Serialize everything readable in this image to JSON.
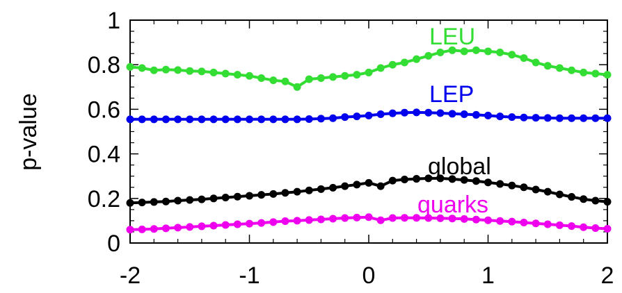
{
  "chart_data": {
    "type": "line",
    "title": "",
    "xlabel": "",
    "ylabel": "p-value",
    "xlim": [
      -2,
      2
    ],
    "ylim": [
      0,
      1
    ],
    "x_ticks": [
      "-2",
      "-1",
      "0",
      "1",
      "2"
    ],
    "y_ticks": [
      "0",
      "0.2",
      "0.4",
      "0.6",
      "0.8",
      "1"
    ],
    "grid": false,
    "legend": "none",
    "series": [
      {
        "name": "LEU",
        "color": "#33dd33",
        "x": [
          -2.0,
          -1.9,
          -1.8,
          -1.7,
          -1.6,
          -1.5,
          -1.4,
          -1.3,
          -1.2,
          -1.1,
          -1.0,
          -0.9,
          -0.8,
          -0.7,
          -0.6,
          -0.5,
          -0.4,
          -0.3,
          -0.2,
          -0.1,
          0.0,
          0.1,
          0.2,
          0.3,
          0.4,
          0.5,
          0.6,
          0.7,
          0.8,
          0.9,
          1.0,
          1.1,
          1.2,
          1.3,
          1.4,
          1.5,
          1.6,
          1.7,
          1.8,
          1.9,
          2.0
        ],
        "values": [
          0.79,
          0.785,
          0.775,
          0.778,
          0.776,
          0.772,
          0.77,
          0.765,
          0.76,
          0.755,
          0.75,
          0.74,
          0.73,
          0.725,
          0.7,
          0.735,
          0.74,
          0.745,
          0.75,
          0.755,
          0.765,
          0.785,
          0.8,
          0.81,
          0.825,
          0.84,
          0.855,
          0.865,
          0.86,
          0.865,
          0.86,
          0.855,
          0.845,
          0.83,
          0.81,
          0.795,
          0.785,
          0.775,
          0.765,
          0.76,
          0.755
        ]
      },
      {
        "name": "LEP",
        "color": "#0000ee",
        "x": [
          -2.0,
          -1.9,
          -1.8,
          -1.7,
          -1.6,
          -1.5,
          -1.4,
          -1.3,
          -1.2,
          -1.1,
          -1.0,
          -0.9,
          -0.8,
          -0.7,
          -0.6,
          -0.5,
          -0.4,
          -0.3,
          -0.2,
          -0.1,
          0.0,
          0.1,
          0.2,
          0.3,
          0.4,
          0.5,
          0.6,
          0.7,
          0.8,
          0.9,
          1.0,
          1.1,
          1.2,
          1.3,
          1.4,
          1.5,
          1.6,
          1.7,
          1.8,
          1.9,
          2.0
        ],
        "values": [
          0.555,
          0.555,
          0.555,
          0.555,
          0.555,
          0.555,
          0.555,
          0.555,
          0.555,
          0.555,
          0.555,
          0.555,
          0.555,
          0.555,
          0.555,
          0.556,
          0.558,
          0.56,
          0.565,
          0.568,
          0.572,
          0.578,
          0.582,
          0.585,
          0.586,
          0.585,
          0.583,
          0.58,
          0.578,
          0.575,
          0.572,
          0.568,
          0.565,
          0.563,
          0.562,
          0.561,
          0.56,
          0.56,
          0.56,
          0.56,
          0.56
        ]
      },
      {
        "name": "global",
        "color": "#000000",
        "x": [
          -2.0,
          -1.9,
          -1.8,
          -1.7,
          -1.6,
          -1.5,
          -1.4,
          -1.3,
          -1.2,
          -1.1,
          -1.0,
          -0.9,
          -0.8,
          -0.7,
          -0.6,
          -0.5,
          -0.4,
          -0.3,
          -0.2,
          -0.1,
          0.0,
          0.1,
          0.2,
          0.3,
          0.4,
          0.5,
          0.6,
          0.7,
          0.8,
          0.9,
          1.0,
          1.1,
          1.2,
          1.3,
          1.4,
          1.5,
          1.6,
          1.7,
          1.8,
          1.9,
          2.0
        ],
        "values": [
          0.18,
          0.182,
          0.184,
          0.186,
          0.19,
          0.193,
          0.196,
          0.2,
          0.204,
          0.208,
          0.212,
          0.216,
          0.22,
          0.225,
          0.23,
          0.236,
          0.242,
          0.248,
          0.255,
          0.262,
          0.27,
          0.255,
          0.28,
          0.285,
          0.288,
          0.29,
          0.29,
          0.287,
          0.283,
          0.278,
          0.272,
          0.265,
          0.258,
          0.25,
          0.24,
          0.23,
          0.218,
          0.207,
          0.197,
          0.19,
          0.185
        ]
      },
      {
        "name": "quarks",
        "color": "#ee00ee",
        "x": [
          -2.0,
          -1.9,
          -1.8,
          -1.7,
          -1.6,
          -1.5,
          -1.4,
          -1.3,
          -1.2,
          -1.1,
          -1.0,
          -0.9,
          -0.8,
          -0.7,
          -0.6,
          -0.5,
          -0.4,
          -0.3,
          -0.2,
          -0.1,
          0.0,
          0.1,
          0.2,
          0.3,
          0.4,
          0.5,
          0.6,
          0.7,
          0.8,
          0.9,
          1.0,
          1.1,
          1.2,
          1.3,
          1.4,
          1.5,
          1.6,
          1.7,
          1.8,
          1.9,
          2.0
        ],
        "values": [
          0.06,
          0.061,
          0.063,
          0.066,
          0.069,
          0.072,
          0.075,
          0.078,
          0.081,
          0.084,
          0.087,
          0.09,
          0.094,
          0.098,
          0.1,
          0.103,
          0.106,
          0.109,
          0.112,
          0.114,
          0.116,
          0.102,
          0.112,
          0.113,
          0.113,
          0.112,
          0.111,
          0.11,
          0.108,
          0.105,
          0.102,
          0.099,
          0.096,
          0.092,
          0.088,
          0.084,
          0.08,
          0.076,
          0.071,
          0.067,
          0.064
        ]
      }
    ]
  }
}
